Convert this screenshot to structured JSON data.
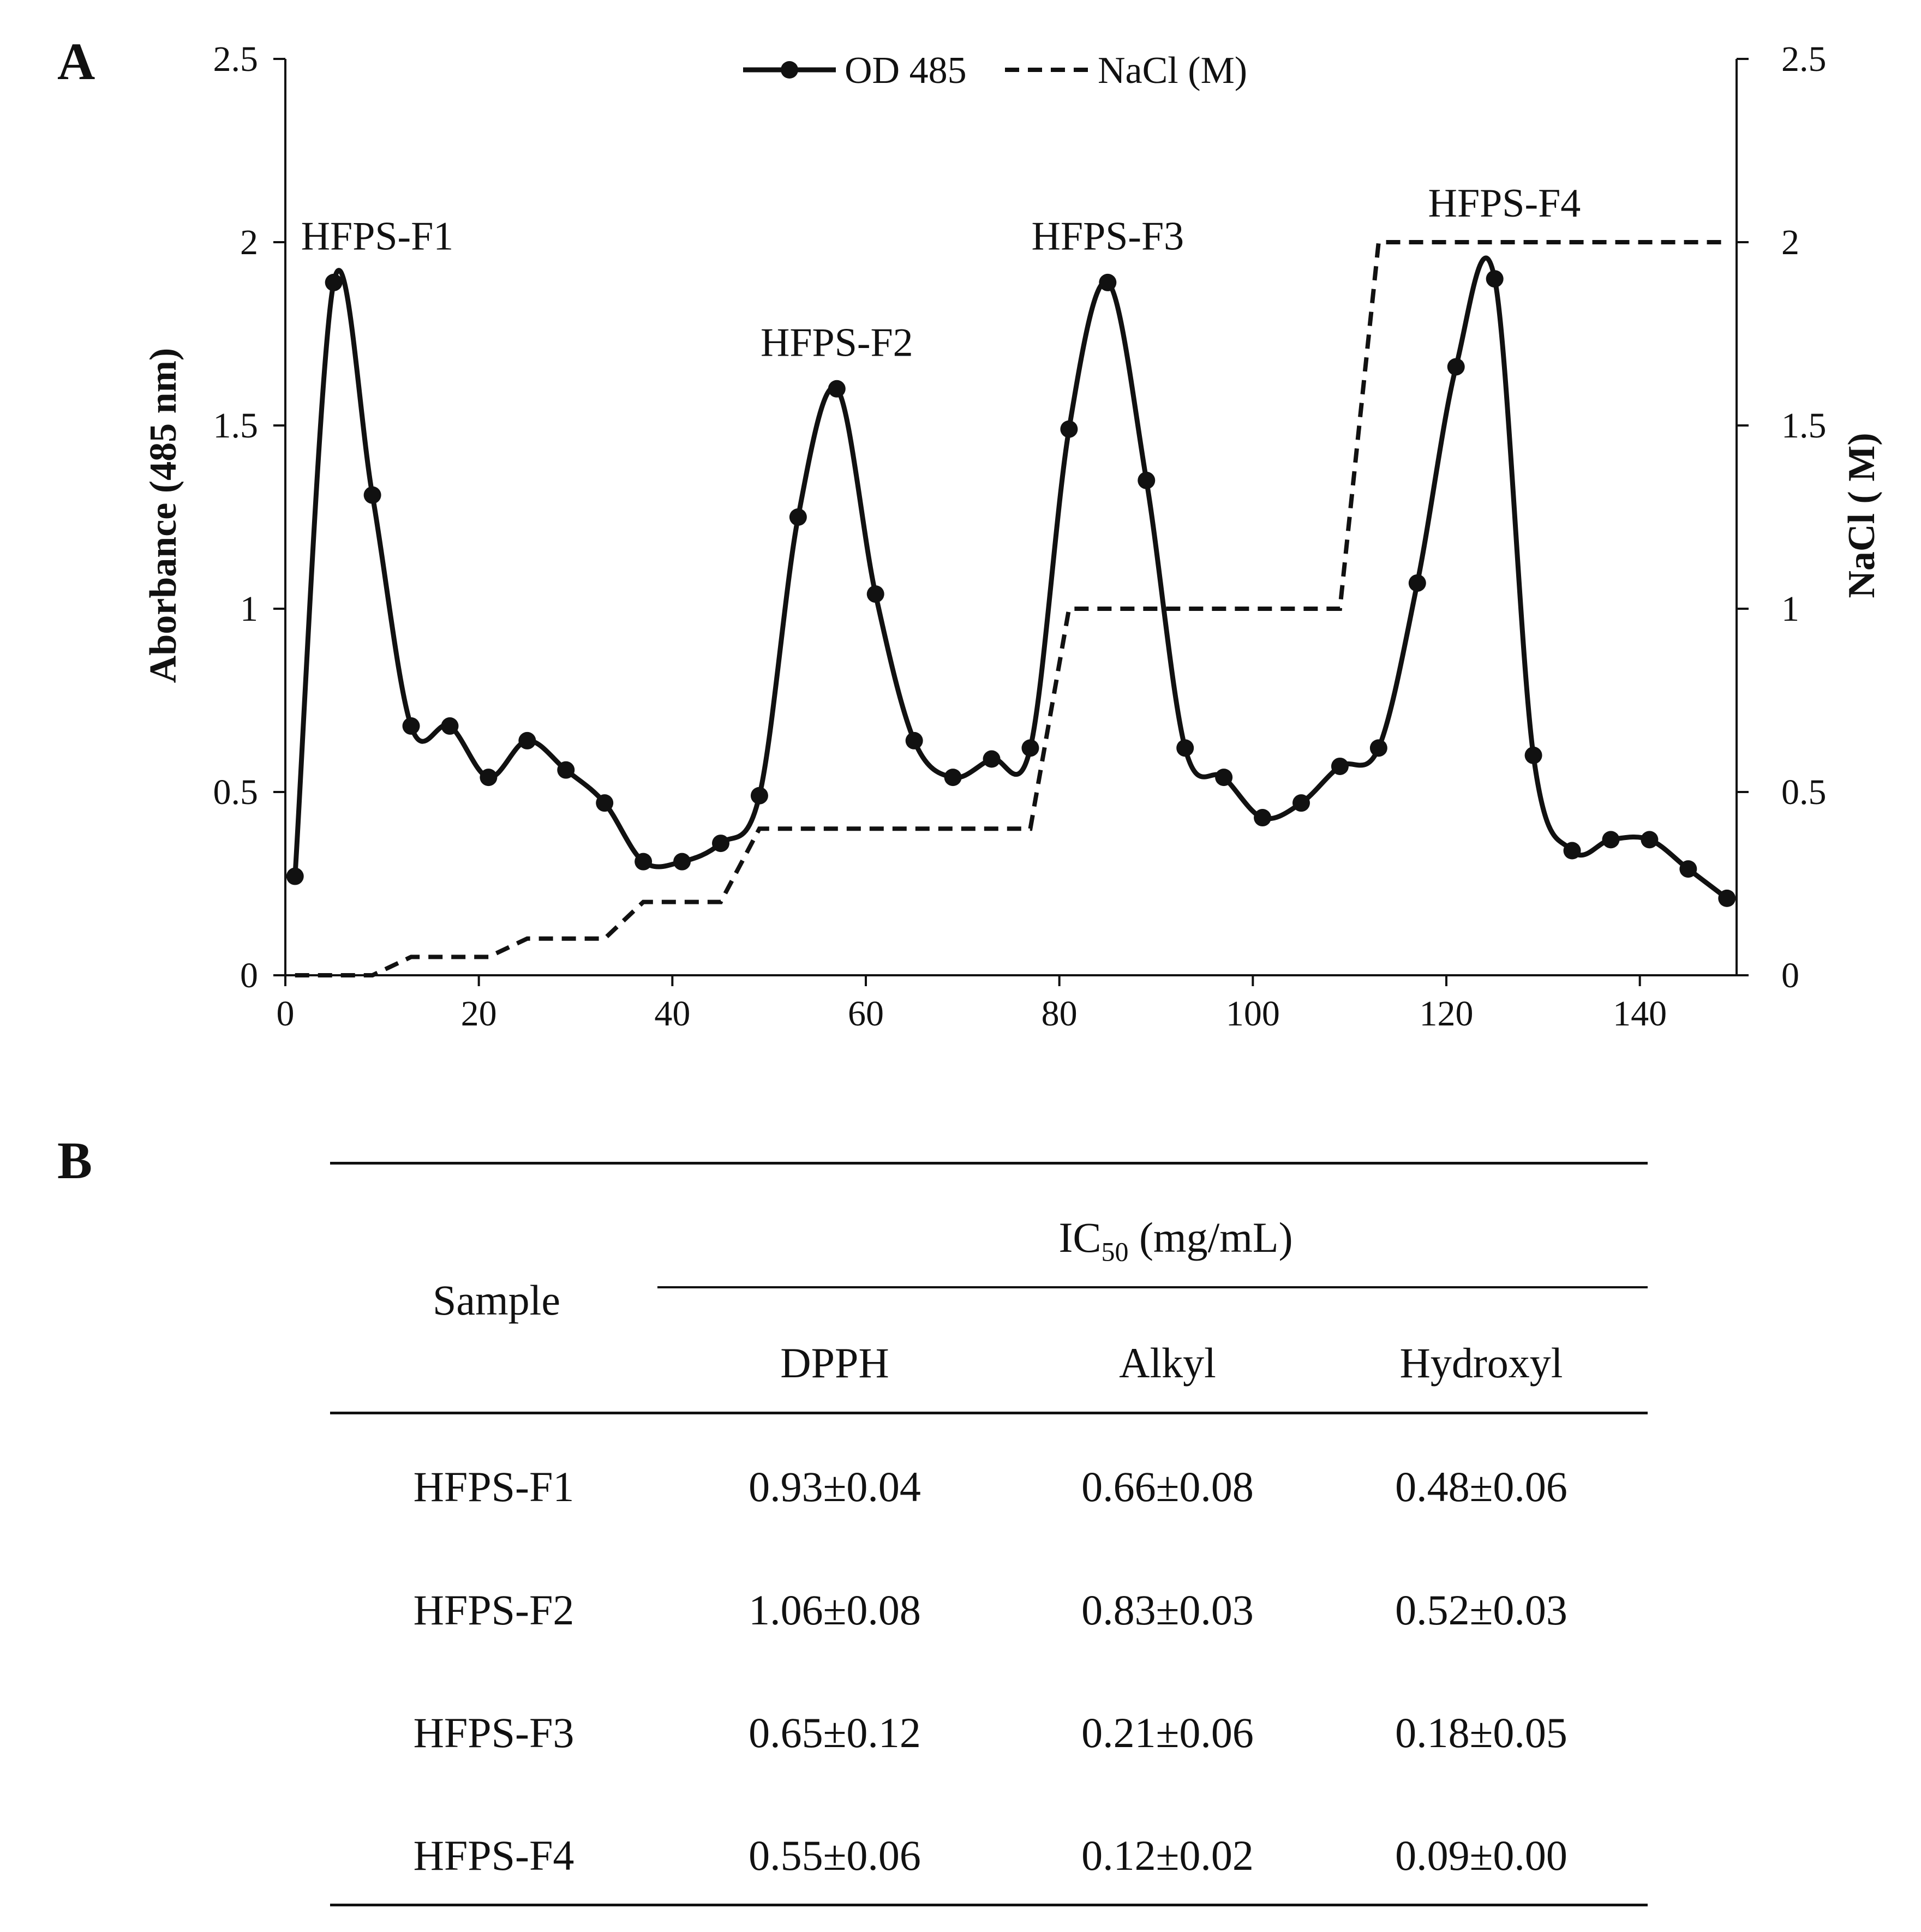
{
  "panel_a_label": "A",
  "panel_b_label": "B",
  "chart_data": {
    "type": "line",
    "legend": [
      "OD 485",
      "NaCl (M)"
    ],
    "legend_position": "top-center",
    "ylabel": "Aborbance (485 nm)",
    "y2label": "NaCl ( M)",
    "xlim": [
      0,
      150
    ],
    "ylim": [
      0,
      2.5
    ],
    "y2lim": [
      0,
      2.5
    ],
    "xticks": [
      "0",
      "20",
      "40",
      "60",
      "80",
      "100",
      "120",
      "140"
    ],
    "yticks": [
      "0",
      "0.5",
      "1",
      "1.5",
      "2",
      "2.5"
    ],
    "grid": false,
    "series": [
      {
        "name": "OD 485",
        "style": "solid-with-markers",
        "x": [
          1,
          5,
          9,
          13,
          17,
          21,
          25,
          29,
          33,
          37,
          41,
          45,
          49,
          53,
          57,
          61,
          65,
          69,
          73,
          77,
          81,
          85,
          89,
          93,
          97,
          101,
          105,
          109,
          113,
          117,
          121,
          125,
          129,
          133,
          137,
          141,
          145,
          149
        ],
        "y": [
          0.27,
          1.89,
          1.31,
          0.68,
          0.68,
          0.54,
          0.64,
          0.56,
          0.47,
          0.31,
          0.31,
          0.36,
          0.49,
          1.25,
          1.6,
          1.04,
          0.64,
          0.54,
          0.59,
          0.62,
          1.49,
          1.89,
          1.35,
          0.62,
          0.54,
          0.43,
          0.47,
          0.57,
          0.62,
          1.07,
          1.66,
          1.9,
          0.6,
          0.34,
          0.37,
          0.37,
          0.29,
          0.21
        ]
      },
      {
        "name": "NaCl (M)",
        "style": "dashed",
        "axis": "right",
        "x": [
          1,
          9,
          13,
          21,
          25,
          33,
          37,
          45,
          49,
          77,
          81,
          109,
          113,
          149
        ],
        "y": [
          0,
          0,
          0.05,
          0.05,
          0.1,
          0.1,
          0.2,
          0.2,
          0.4,
          0.4,
          1.0,
          1.0,
          2.0,
          2.0
        ]
      }
    ],
    "annotations": [
      {
        "text": "HFPS-F1",
        "x": 9.5,
        "y": 1.98
      },
      {
        "text": "HFPS-F2",
        "x": 57,
        "y": 1.69
      },
      {
        "text": "HFPS-F3",
        "x": 85,
        "y": 1.98
      },
      {
        "text": "HFPS-F4",
        "x": 126,
        "y": 2.07
      }
    ]
  },
  "table": {
    "sample_header": "Sample",
    "group_header": "IC",
    "group_header_sub": "50",
    "group_header_unit": " (mg/mL)",
    "columns": [
      "DPPH",
      "Alkyl",
      "Hydroxyl"
    ],
    "rows": [
      {
        "sample": "HFPS-F1",
        "values": [
          "0.93±0.04",
          "0.66±0.08",
          "0.48±0.06"
        ]
      },
      {
        "sample": "HFPS-F2",
        "values": [
          "1.06±0.08",
          "0.83±0.03",
          "0.52±0.03"
        ]
      },
      {
        "sample": "HFPS-F3",
        "values": [
          "0.65±0.12",
          "0.21±0.06",
          "0.18±0.05"
        ]
      },
      {
        "sample": "HFPS-F4",
        "values": [
          "0.55±0.06",
          "0.12±0.02",
          "0.09±0.00"
        ]
      }
    ]
  }
}
